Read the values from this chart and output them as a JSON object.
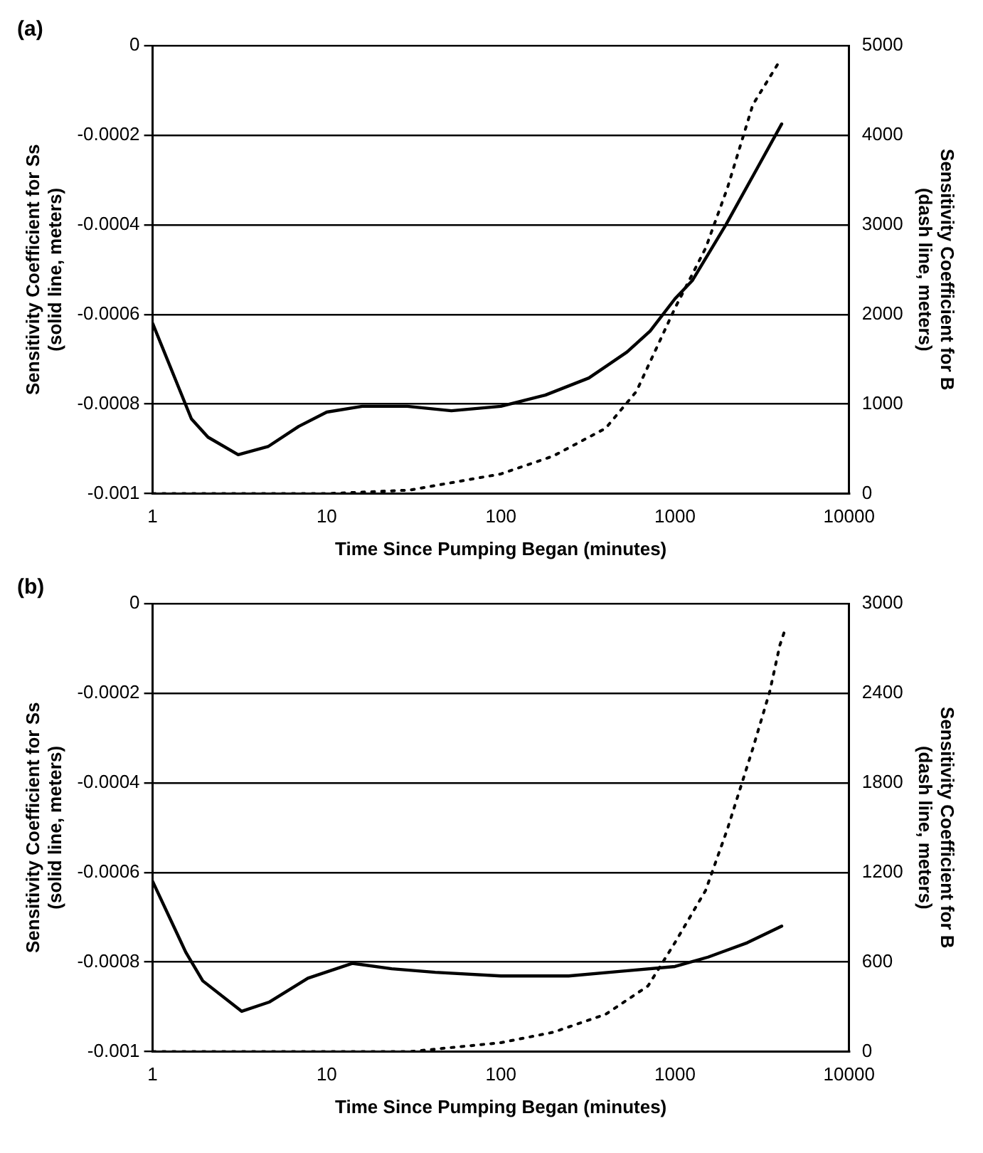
{
  "chart_data": [
    {
      "type": "line",
      "title": "(a)",
      "xlabel": "Time Since Pumping Began (minutes)",
      "ylabel": "Sensitivity Coefficient for Ss (solid line, meters)",
      "y2label": "Sensitivity Coefficient for B (dash line, meters)",
      "log": "x",
      "grid": "y",
      "legend": false,
      "marker": "none",
      "xlim": [
        1,
        10000
      ],
      "xticks": [
        1,
        10,
        100,
        1000,
        10000
      ],
      "ylim": [
        -0.001,
        0
      ],
      "yticks": [
        -0.001,
        -0.0008,
        -0.0006,
        -0.0004,
        -0.0002,
        0
      ],
      "y2lim": [
        0,
        5000
      ],
      "y2ticks": [
        0,
        1000,
        2000,
        3000,
        4000,
        5000
      ],
      "series": [
        {
          "color": "#000000",
          "line_style": "solid",
          "x": [
            1,
            1.67,
            2.08,
            3.1,
            4.6,
            6.9,
            10,
            16,
            29,
            52,
            100,
            180,
            320,
            530,
            720,
            1000,
            1260,
            1960,
            2840,
            4100
          ],
          "values": [
            -0.00062,
            -0.000833,
            -0.000874,
            -0.000913,
            -0.000895,
            -0.00085,
            -0.000818,
            -0.000805,
            -0.000805,
            -0.000815,
            -0.000805,
            -0.00078,
            -0.000742,
            -0.000684,
            -0.000637,
            -0.000565,
            -0.000524,
            -0.0004,
            -0.000287,
            -0.000175
          ]
        },
        {
          "color": "#000000",
          "line_style": "dotted",
          "axis": "y2",
          "x": [
            1,
            10,
            30,
            100,
            200,
            400,
            600,
            1000,
            1500,
            2000,
            2800,
            4000
          ],
          "values": [
            0,
            0,
            40,
            220,
            420,
            730,
            1140,
            2070,
            2740,
            3410,
            4340,
            4830
          ]
        }
      ]
    },
    {
      "type": "line",
      "title": "(b)",
      "xlabel": "Time Since Pumping Began (minutes)",
      "ylabel": "Sensitivity Coefficient for Ss (solid line, meters)",
      "y2label": "Sensitivity Coefficient for B (dash line, meters)",
      "log": "x",
      "grid": "y",
      "legend": false,
      "marker": "none",
      "xlim": [
        1,
        10000
      ],
      "xticks": [
        1,
        10,
        100,
        1000,
        10000
      ],
      "ylim": [
        -0.001,
        0
      ],
      "yticks": [
        -0.001,
        -0.0008,
        -0.0006,
        -0.0004,
        -0.0002,
        0
      ],
      "y2lim": [
        0,
        3000
      ],
      "y2ticks": [
        0,
        600,
        1200,
        1800,
        2400,
        3000
      ],
      "series": [
        {
          "color": "#000000",
          "line_style": "solid",
          "x": [
            1,
            1.55,
            1.94,
            3.25,
            4.7,
            7.8,
            14,
            23.6,
            42,
            100,
            245,
            480,
            1000,
            1550,
            2600,
            4100
          ],
          "values": [
            -0.00062,
            -0.000778,
            -0.000842,
            -0.00091,
            -0.000889,
            -0.000836,
            -0.000803,
            -0.000815,
            -0.000823,
            -0.000831,
            -0.000831,
            -0.000821,
            -0.00081,
            -0.000789,
            -0.000757,
            -0.00072
          ]
        },
        {
          "color": "#000000",
          "line_style": "dotted",
          "axis": "y2",
          "x": [
            1,
            10,
            30,
            100,
            200,
            400,
            700,
            1000,
            1500,
            2000,
            2800,
            3500,
            4000,
            4300
          ],
          "values": [
            0,
            0,
            0,
            60,
            130,
            250,
            440,
            730,
            1080,
            1490,
            2030,
            2410,
            2720,
            2830
          ]
        }
      ]
    }
  ]
}
